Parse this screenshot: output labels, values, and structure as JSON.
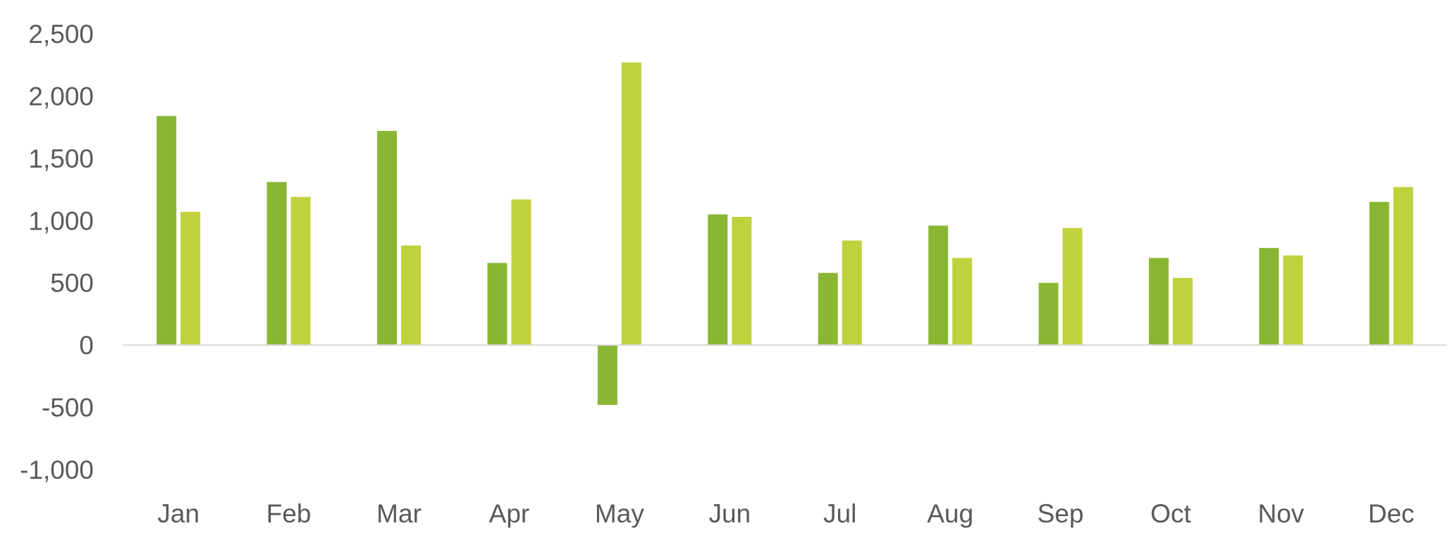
{
  "chart_data": {
    "type": "bar",
    "title": "",
    "xlabel": "",
    "ylabel": "",
    "categories": [
      "Jan",
      "Feb",
      "Mar",
      "Apr",
      "May",
      "Jun",
      "Jul",
      "Aug",
      "Sep",
      "Oct",
      "Nov",
      "Dec"
    ],
    "series": [
      {
        "color": "#8ab733",
        "values": [
          1840,
          1310,
          1720,
          660,
          -480,
          1050,
          580,
          960,
          500,
          700,
          780,
          1150
        ]
      },
      {
        "color": "#c0d13e",
        "values": [
          1070,
          1190,
          800,
          1170,
          2270,
          1030,
          840,
          700,
          940,
          540,
          720,
          1270
        ]
      }
    ],
    "ylim": [
      -1000,
      2500
    ],
    "yticks": [
      -1000,
      -500,
      0,
      500,
      1000,
      1500,
      2000,
      2500
    ],
    "ytick_labels": [
      "-1,000",
      "-500",
      "0",
      "500",
      "1,000",
      "1,500",
      "2,000",
      "2,500"
    ],
    "grid": false,
    "legend": "none",
    "axis_color": "#d9d9d9",
    "label_color": "#595959"
  }
}
